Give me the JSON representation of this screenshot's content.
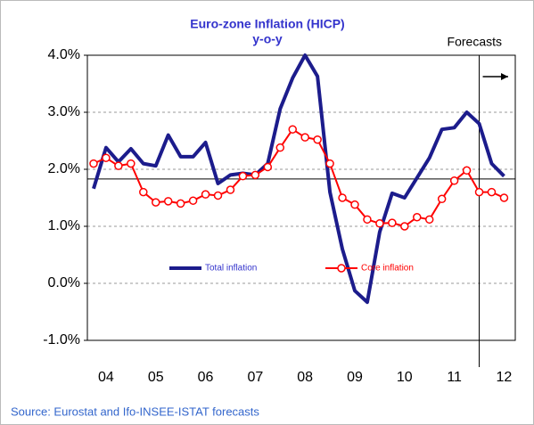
{
  "chart_data": {
    "type": "line",
    "title": "Euro-zone Inflation (HICP)",
    "subtitle": "y-o-y",
    "source": "Source: Eurostat and Ifo-INSEE-ISTAT forecasts",
    "forecast_label": "Forecasts",
    "forecast_x": 2011.875,
    "reference_y": 1.83,
    "x": [
      2004.125,
      2004.375,
      2004.625,
      2004.875,
      2005.125,
      2005.375,
      2005.625,
      2005.875,
      2006.125,
      2006.375,
      2006.625,
      2006.875,
      2007.125,
      2007.375,
      2007.625,
      2007.875,
      2008.125,
      2008.375,
      2008.625,
      2008.875,
      2009.125,
      2009.375,
      2009.625,
      2009.875,
      2010.125,
      2010.375,
      2010.625,
      2010.875,
      2011.125,
      2011.375,
      2011.625,
      2011.875,
      2012.125,
      2012.375
    ],
    "series": [
      {
        "name": "Total inflation",
        "color": "#1c1c8c",
        "values": [
          1.66,
          2.38,
          2.13,
          2.36,
          2.1,
          2.06,
          2.6,
          2.22,
          2.22,
          2.47,
          1.75,
          1.9,
          1.93,
          1.9,
          2.1,
          3.06,
          3.6,
          4.0,
          3.63,
          1.6,
          0.6,
          -0.13,
          -0.33,
          0.9,
          1.58,
          1.5,
          1.85,
          2.2,
          2.7,
          2.73,
          3.0,
          2.8,
          2.1,
          1.88
        ]
      },
      {
        "name": "Core inflation",
        "color": "#ff0000",
        "values": [
          2.1,
          2.2,
          2.06,
          2.1,
          1.6,
          1.42,
          1.44,
          1.4,
          1.45,
          1.56,
          1.54,
          1.64,
          1.88,
          1.9,
          2.04,
          2.38,
          2.7,
          2.56,
          2.52,
          2.1,
          1.5,
          1.38,
          1.12,
          1.05,
          1.06,
          1.0,
          1.16,
          1.12,
          1.48,
          1.8,
          1.98,
          1.6,
          1.6,
          1.5
        ]
      }
    ],
    "xlim": [
      2004,
      2012.6
    ],
    "xticks": [
      {
        "value": 2004.375,
        "label": "04"
      },
      {
        "value": 2005.375,
        "label": "05"
      },
      {
        "value": 2006.375,
        "label": "06"
      },
      {
        "value": 2007.375,
        "label": "07"
      },
      {
        "value": 2008.375,
        "label": "08"
      },
      {
        "value": 2009.375,
        "label": "09"
      },
      {
        "value": 2010.375,
        "label": "10"
      },
      {
        "value": 2011.375,
        "label": "11"
      },
      {
        "value": 2012.375,
        "label": "12"
      }
    ],
    "ylim": [
      -1,
      4
    ],
    "yticks": [
      {
        "value": -1,
        "label": "-1.0%"
      },
      {
        "value": 0,
        "label": "0.0%"
      },
      {
        "value": 1,
        "label": "1.0%"
      },
      {
        "value": 2,
        "label": "2.0%"
      },
      {
        "value": 3,
        "label": "3.0%"
      },
      {
        "value": 4,
        "label": "4.0%"
      }
    ],
    "grid": true,
    "legend": "center"
  }
}
